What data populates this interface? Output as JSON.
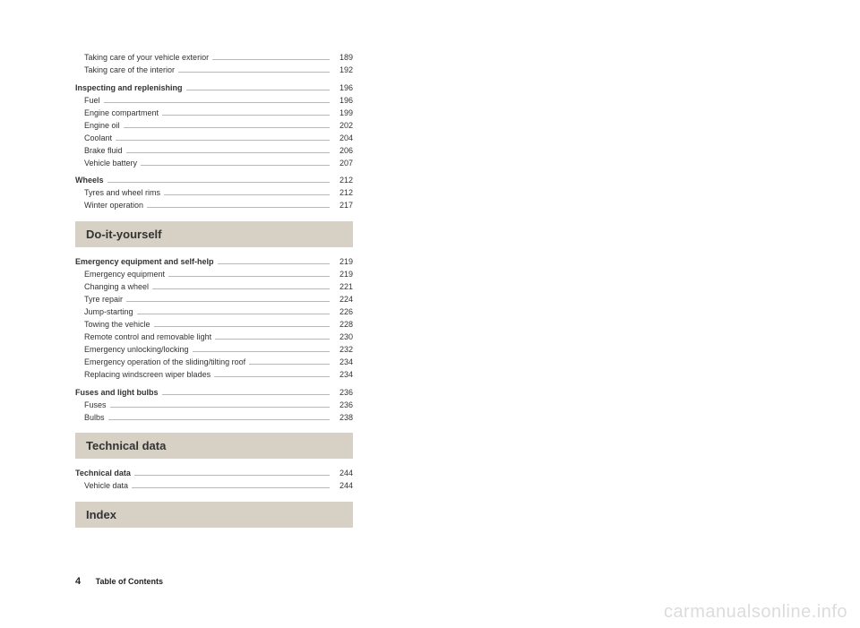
{
  "colors": {
    "heading_bg": "#d6d1c4",
    "heading_text": "#333333",
    "text": "#333333",
    "leader": "#b8b8b8",
    "watermark": "#dcdcdc",
    "background": "#ffffff"
  },
  "entries": [
    {
      "label": "Taking care of your vehicle exterior",
      "page": "189",
      "type": "sub"
    },
    {
      "label": "Taking care of the interior",
      "page": "192",
      "type": "sub"
    },
    {
      "type": "spacer"
    },
    {
      "label": "Inspecting and replenishing",
      "page": "196",
      "type": "bold"
    },
    {
      "label": "Fuel",
      "page": "196",
      "type": "sub"
    },
    {
      "label": "Engine compartment",
      "page": "199",
      "type": "sub"
    },
    {
      "label": "Engine oil",
      "page": "202",
      "type": "sub"
    },
    {
      "label": "Coolant",
      "page": "204",
      "type": "sub"
    },
    {
      "label": "Brake fluid",
      "page": "206",
      "type": "sub"
    },
    {
      "label": "Vehicle battery",
      "page": "207",
      "type": "sub"
    },
    {
      "type": "spacer"
    },
    {
      "label": "Wheels",
      "page": "212",
      "type": "bold"
    },
    {
      "label": "Tyres and wheel rims",
      "page": "212",
      "type": "sub"
    },
    {
      "label": "Winter operation",
      "page": "217",
      "type": "sub"
    },
    {
      "type": "heading",
      "label": "Do-it-yourself"
    },
    {
      "label": "Emergency equipment and self-help",
      "page": "219",
      "type": "bold"
    },
    {
      "label": "Emergency equipment",
      "page": "219",
      "type": "sub"
    },
    {
      "label": "Changing a wheel",
      "page": "221",
      "type": "sub"
    },
    {
      "label": "Tyre repair",
      "page": "224",
      "type": "sub"
    },
    {
      "label": "Jump-starting",
      "page": "226",
      "type": "sub"
    },
    {
      "label": "Towing the vehicle",
      "page": "228",
      "type": "sub"
    },
    {
      "label": "Remote control and removable light",
      "page": "230",
      "type": "sub"
    },
    {
      "label": "Emergency unlocking/locking",
      "page": "232",
      "type": "sub"
    },
    {
      "label": "Emergency operation of the sliding/tilting roof",
      "page": "234",
      "type": "sub"
    },
    {
      "label": "Replacing windscreen wiper blades",
      "page": "234",
      "type": "sub"
    },
    {
      "type": "spacer"
    },
    {
      "label": "Fuses and light bulbs",
      "page": "236",
      "type": "bold"
    },
    {
      "label": "Fuses",
      "page": "236",
      "type": "sub"
    },
    {
      "label": "Bulbs",
      "page": "238",
      "type": "sub"
    },
    {
      "type": "heading",
      "label": "Technical data"
    },
    {
      "label": "Technical data",
      "page": "244",
      "type": "bold"
    },
    {
      "label": "Vehicle data",
      "page": "244",
      "type": "sub"
    },
    {
      "type": "heading",
      "label": "Index"
    }
  ],
  "footer": {
    "pagenum": "4",
    "label": "Table of Contents"
  },
  "watermark": "carmanualsonline.info"
}
